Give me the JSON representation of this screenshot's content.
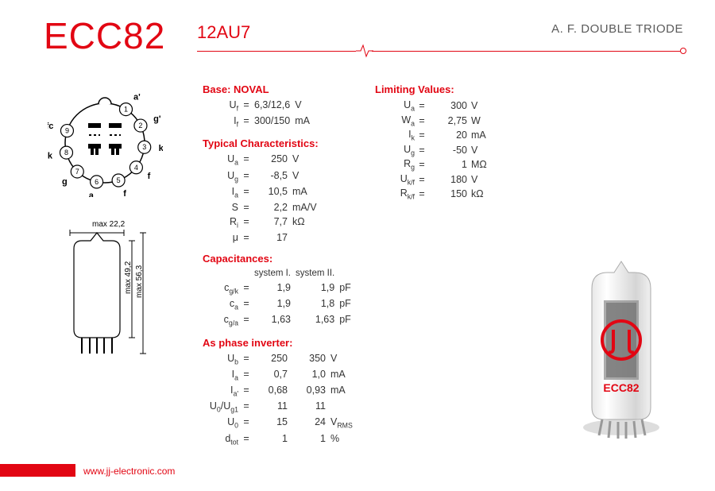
{
  "header": {
    "model": "ECC82",
    "alt_model": "12AU7",
    "type_desc": "A. F. DOUBLE TRIODE"
  },
  "colors": {
    "accent": "#e20613",
    "text": "#333333",
    "subtitle": "#5a5a5a"
  },
  "pin_diagram": {
    "pins": [
      {
        "n": "1",
        "label": "a'",
        "angle": 30
      },
      {
        "n": "2",
        "label": "g'",
        "angle": 0
      },
      {
        "n": "3",
        "label": "k'",
        "angle": -30
      },
      {
        "n": "4",
        "label": "f",
        "angle": -60
      },
      {
        "n": "5",
        "label": "f",
        "angle": -120
      },
      {
        "n": "6",
        "label": "a",
        "angle": -150
      },
      {
        "n": "7",
        "label": "g",
        "angle": 180
      },
      {
        "n": "8",
        "label": "k",
        "angle": 150
      },
      {
        "n": "9",
        "label": "fc",
        "angle": 60
      }
    ]
  },
  "outline": {
    "width_label": "max 22,2",
    "h1_label": "max 49,2",
    "h2_label": "max 56,3"
  },
  "base": {
    "title": "Base: NOVAL",
    "rows": [
      {
        "sym": "U<sub>f</sub>",
        "val": "6,3/12,6",
        "unit": "V"
      },
      {
        "sym": "I<sub>f</sub>",
        "val": "300/150",
        "unit": "mA"
      }
    ]
  },
  "typical": {
    "title": "Typical Characteristics:",
    "rows": [
      {
        "sym": "U<sub>a</sub>",
        "val": "250",
        "unit": "V"
      },
      {
        "sym": "U<sub>g</sub>",
        "val": "-8,5",
        "unit": "V"
      },
      {
        "sym": "I<sub>a</sub>",
        "val": "10,5",
        "unit": "mA"
      },
      {
        "sym": "S",
        "val": "2,2",
        "unit": "mA/V"
      },
      {
        "sym": "R<sub>i</sub>",
        "val": "7,7",
        "unit": "kΩ"
      },
      {
        "sym": "μ",
        "val": "17",
        "unit": ""
      }
    ]
  },
  "limiting": {
    "title": "Limiting Values:",
    "rows": [
      {
        "sym": "U<sub>a</sub>",
        "val": "300",
        "unit": "V"
      },
      {
        "sym": "W<sub>a</sub>",
        "val": "2,75",
        "unit": "W"
      },
      {
        "sym": "I<sub>k</sub>",
        "val": "20",
        "unit": "mA"
      },
      {
        "sym": "U<sub>g</sub>",
        "val": "-50",
        "unit": "V"
      },
      {
        "sym": "R<sub>g</sub>",
        "val": "1",
        "unit": "MΩ"
      },
      {
        "sym": "U<sub>k/f</sub>",
        "val": "180",
        "unit": "V"
      },
      {
        "sym": "R<sub>k/f</sub>",
        "val": "150",
        "unit": "kΩ"
      }
    ]
  },
  "capacitances": {
    "title": "Capacitances:",
    "col1": "system I.",
    "col2": "system II.",
    "rows": [
      {
        "sym": "c<sub>g/k</sub>",
        "v1": "1,9",
        "v2": "1,9",
        "unit": "pF"
      },
      {
        "sym": "c<sub>a</sub>",
        "v1": "1,9",
        "v2": "1,8",
        "unit": "pF"
      },
      {
        "sym": "c<sub>g/a</sub>",
        "v1": "1,63",
        "v2": "1,63",
        "unit": "pF"
      }
    ]
  },
  "phase_inverter": {
    "title": "As phase inverter:",
    "rows": [
      {
        "sym": "U<sub>b</sub>",
        "v1": "250",
        "v2": "350",
        "unit": "V"
      },
      {
        "sym": "I<sub>a</sub>",
        "v1": "0,7",
        "v2": "1,0",
        "unit": "mA"
      },
      {
        "sym": "I<sub>a'</sub>",
        "v1": "0,68",
        "v2": "0,93",
        "unit": "mA"
      },
      {
        "sym": "U<sub>0</sub>/U<sub>g1</sub>",
        "v1": "11",
        "v2": "11",
        "unit": ""
      },
      {
        "sym": "U<sub>0</sub>",
        "v1": "15",
        "v2": "24",
        "unit": "V<sub>RMS</sub>"
      },
      {
        "sym": "d<sub>tot</sub>",
        "v1": "1",
        "v2": "1",
        "unit": "%"
      }
    ]
  },
  "tube_label": "ECC82",
  "footer": {
    "url": "www.jj-electronic.com"
  }
}
